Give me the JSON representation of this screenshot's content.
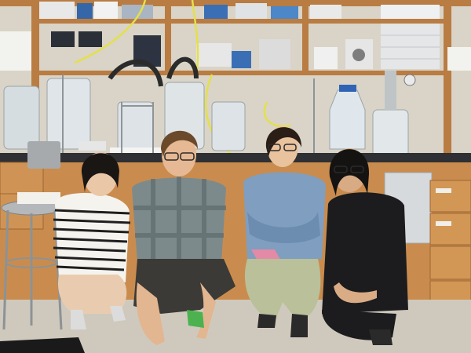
{
  "photo": {
    "subject": "lab-group-portrait",
    "people_count": 4,
    "palette": {
      "wall": "#d9d4c7",
      "cabinet_wood": "#c98c4e",
      "countertop": "#2f3033",
      "floor": "#cfc9bd",
      "tubing_yellow": "#e4e04a",
      "shirt_plaid": "#7d8a8c",
      "shirt_denim": "#7f9ec0",
      "dress_black": "#1c1c1e",
      "pants_sage": "#b9c09a"
    }
  }
}
